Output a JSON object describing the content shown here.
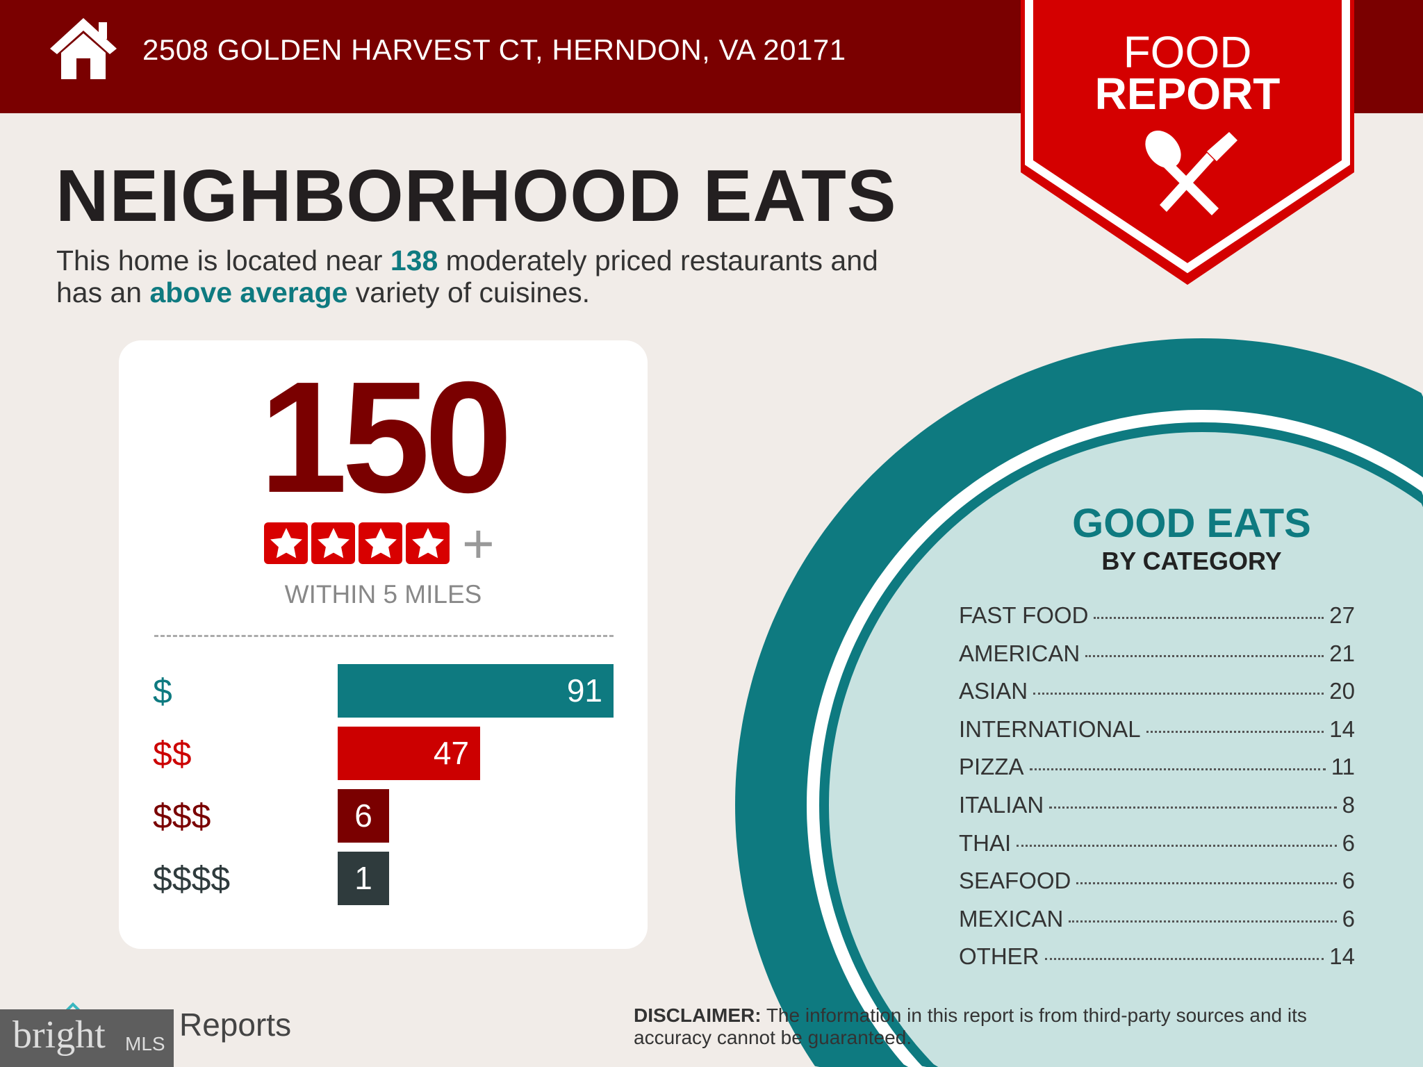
{
  "header": {
    "address": "2508 GOLDEN HARVEST CT, HERNDON, VA 20171",
    "icon": "house-icon"
  },
  "badge": {
    "line1": "FOOD",
    "line2": "REPORT",
    "icon": "spoon-fork-icon"
  },
  "title": "NEIGHBORHOOD EATS",
  "summary": {
    "part1": "This home is located near ",
    "count": "138",
    "part2": " moderately priced restaurants and",
    "part3": "has an ",
    "variety": "above average",
    "part4": " variety of cuisines."
  },
  "card": {
    "total": "150",
    "rating_stars": 4,
    "plus": "+",
    "within": "WITHIN 5 MILES"
  },
  "chart_data": {
    "type": "bar",
    "categories": [
      "$",
      "$$",
      "$$$",
      "$$$$"
    ],
    "values": [
      91,
      47,
      6,
      1
    ],
    "colors": [
      "#0e7a80",
      "#cc0000",
      "#7a0000",
      "#2f3b3d"
    ]
  },
  "good_eats": {
    "title": "GOOD EATS",
    "subtitle": "BY CATEGORY",
    "items": [
      {
        "name": "FAST FOOD",
        "count": "27"
      },
      {
        "name": "AMERICAN",
        "count": "21"
      },
      {
        "name": "ASIAN",
        "count": "20"
      },
      {
        "name": "INTERNATIONAL",
        "count": "14"
      },
      {
        "name": "PIZZA",
        "count": "11"
      },
      {
        "name": "ITALIAN",
        "count": "8"
      },
      {
        "name": "THAI",
        "count": "6"
      },
      {
        "name": "SEAFOOD",
        "count": "6"
      },
      {
        "name": "MEXICAN",
        "count": "6"
      },
      {
        "name": "OTHER",
        "count": "14"
      }
    ]
  },
  "footer": {
    "disclaimer_label": "DISCLAIMER:",
    "disclaimer": " The information in this report is from third-party sources and its accuracy cannot be guaranteed.",
    "reports": "Reports",
    "bright": "bright",
    "mls": "MLS"
  },
  "colors": {
    "dark_red": "#7a0000",
    "red": "#cc0000",
    "teal": "#0e7a80",
    "light_teal": "#c8e2e0"
  }
}
